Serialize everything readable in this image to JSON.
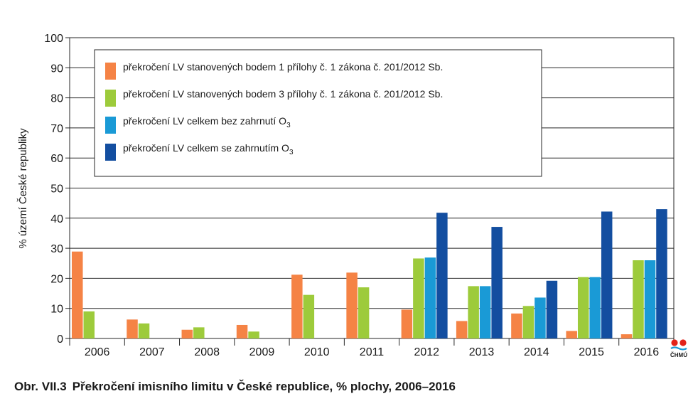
{
  "caption": {
    "figure_no": "Obr. VII.3",
    "title": "Překročení imisního limitu v České republice, % plochy, 2006–2016"
  },
  "logo": {
    "text": "ČHMÚ",
    "icon": "chmu-logo"
  },
  "chart_data": {
    "type": "bar",
    "title": "Překročení imisního limitu v České republice, % plochy, 2006–2016",
    "xlabel": "",
    "ylabel": "% území České republiky",
    "ylim": [
      0,
      100
    ],
    "yticks": [
      0,
      10,
      20,
      30,
      40,
      50,
      60,
      70,
      80,
      90,
      100
    ],
    "grid": "horizontal",
    "legend_position": "top-left",
    "categories": [
      "2006",
      "2007",
      "2008",
      "2009",
      "2010",
      "2011",
      "2012",
      "2013",
      "2014",
      "2015",
      "2016"
    ],
    "series": [
      {
        "name": "překročení LV stanovených bodem 1 přílohy č. 1 zákona č. 201/2012 Sb.",
        "legend_main": "překročení LV stanovených bodem 1 přílohy č. 1 zákona č. 201/2012 Sb.",
        "legend_sub": "",
        "color": "#f58345",
        "values": [
          28.9,
          6.3,
          2.9,
          4.5,
          21.2,
          21.9,
          9.6,
          5.8,
          8.3,
          2.5,
          1.4
        ]
      },
      {
        "name": "překročení LV stanovených bodem 3 přílohy č. 1 zákona č. 201/2012 Sb.",
        "legend_main": "překročení LV stanovených bodem 3 přílohy č. 1 zákona č. 201/2012 Sb.",
        "legend_sub": "",
        "color": "#9dcb3b",
        "values": [
          9.0,
          5.0,
          3.7,
          2.3,
          14.5,
          17.0,
          26.6,
          17.4,
          10.8,
          20.4,
          26.0
        ]
      },
      {
        "name": "překročení LV celkem bez zahrnutí O3",
        "legend_main": "překročení LV celkem bez zahrnutí O",
        "legend_sub": "3",
        "color": "#1a9ad6",
        "values": [
          null,
          null,
          null,
          null,
          null,
          null,
          26.9,
          17.4,
          13.6,
          20.4,
          26.0
        ]
      },
      {
        "name": "překročení LV celkem se zahrnutím O3",
        "legend_main": "překročení LV celkem se zahrnutím O",
        "legend_sub": "3",
        "color": "#134ea0",
        "values": [
          null,
          null,
          null,
          null,
          null,
          null,
          41.8,
          37.1,
          19.2,
          42.2,
          43.0
        ]
      }
    ]
  }
}
